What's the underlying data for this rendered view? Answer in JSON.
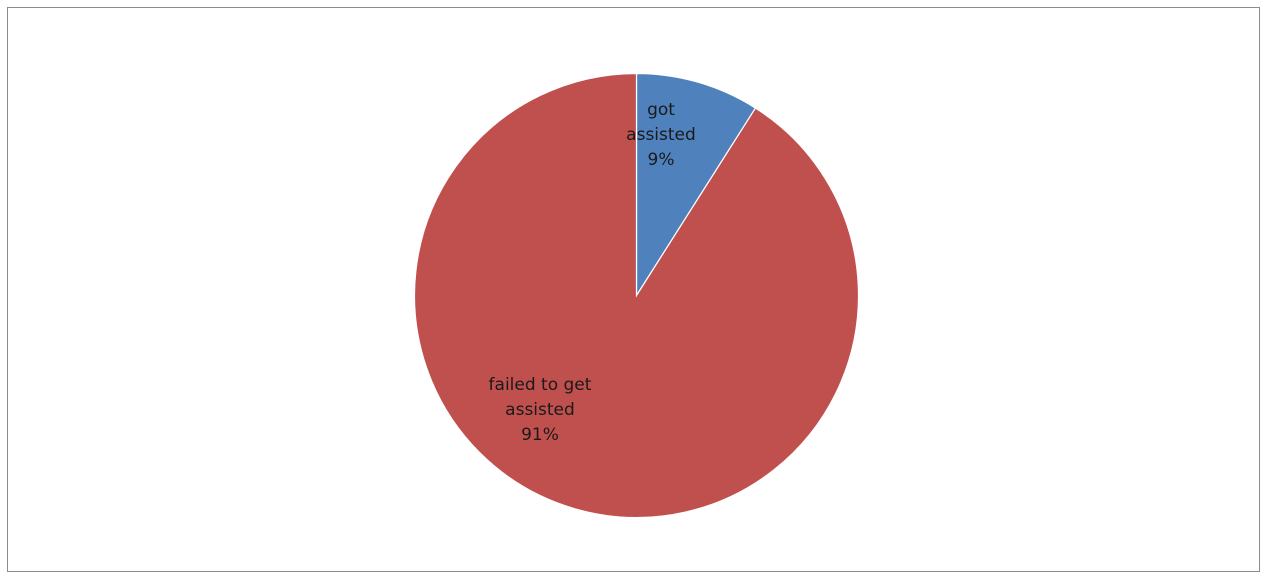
{
  "chart_data": {
    "type": "pie",
    "title": "",
    "categories": [
      "got assisted",
      "failed to get assisted"
    ],
    "values": [
      9,
      91
    ],
    "unit": "%",
    "colors": [
      "#4f81bd",
      "#c0504d"
    ],
    "start_angle_deg": 0,
    "direction": "clockwise",
    "legend": "none",
    "data_labels": [
      [
        "got",
        "assisted",
        "9%"
      ],
      [
        "failed to get",
        "assisted",
        "91%"
      ]
    ]
  }
}
